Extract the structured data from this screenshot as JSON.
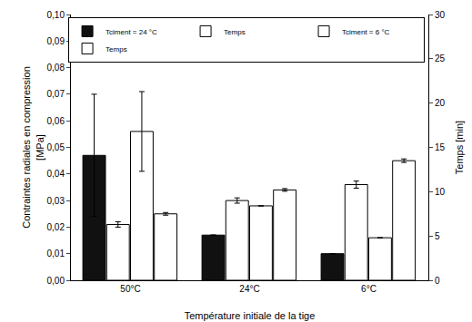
{
  "chart_data": {
    "type": "bar",
    "x_label": "Température initiale de la tige",
    "y_label": "Contraintes radiales en compression\n[MPa]",
    "y2_label": "Temps [min]",
    "categories": [
      "50°C",
      "24°C",
      "6°C"
    ],
    "series": [
      {
        "name": "Tciment = 24 °C",
        "color": "#111111",
        "values": [
          0.047,
          0.017,
          0.01
        ],
        "errors": [
          0.023,
          0,
          0
        ]
      },
      {
        "name": "Temps",
        "color": "#ffffff",
        "axis": "y2",
        "values": [
          6.3,
          9.0,
          10.8
        ],
        "errors": [
          0.3,
          0.3,
          0.4
        ]
      },
      {
        "name": "Tciment = 6 °C",
        "color": "#ffffff",
        "values": [
          0.056,
          0.028,
          0.016
        ],
        "errors": [
          0.015,
          0,
          0
        ]
      },
      {
        "name": "Temps",
        "color": "#ffffff",
        "axis": "y2",
        "values": [
          7.5,
          10.2,
          13.5
        ],
        "errors": [
          0.15,
          0.15,
          0.2
        ]
      }
    ],
    "ylim": [
      0,
      0.1
    ],
    "yticks": [
      {
        "value": 0,
        "label": "0,00"
      },
      {
        "value": 0.01,
        "label": "0,01"
      },
      {
        "value": 0.02,
        "label": "0,02"
      },
      {
        "value": 0.03,
        "label": "0,03"
      },
      {
        "value": 0.04,
        "label": "0,04"
      },
      {
        "value": 0.05,
        "label": "0,05"
      },
      {
        "value": 0.06,
        "label": "0,06"
      },
      {
        "value": 0.07,
        "label": "0,07"
      },
      {
        "value": 0.08,
        "label": "0,08"
      },
      {
        "value": 0.09,
        "label": "0,09"
      },
      {
        "value": 0.1,
        "label": "0,10"
      }
    ],
    "y2lim": [
      0,
      30
    ],
    "y2ticks": [
      0,
      5,
      10,
      15,
      20,
      25,
      30
    ],
    "grid": false,
    "legend": "upper right"
  }
}
